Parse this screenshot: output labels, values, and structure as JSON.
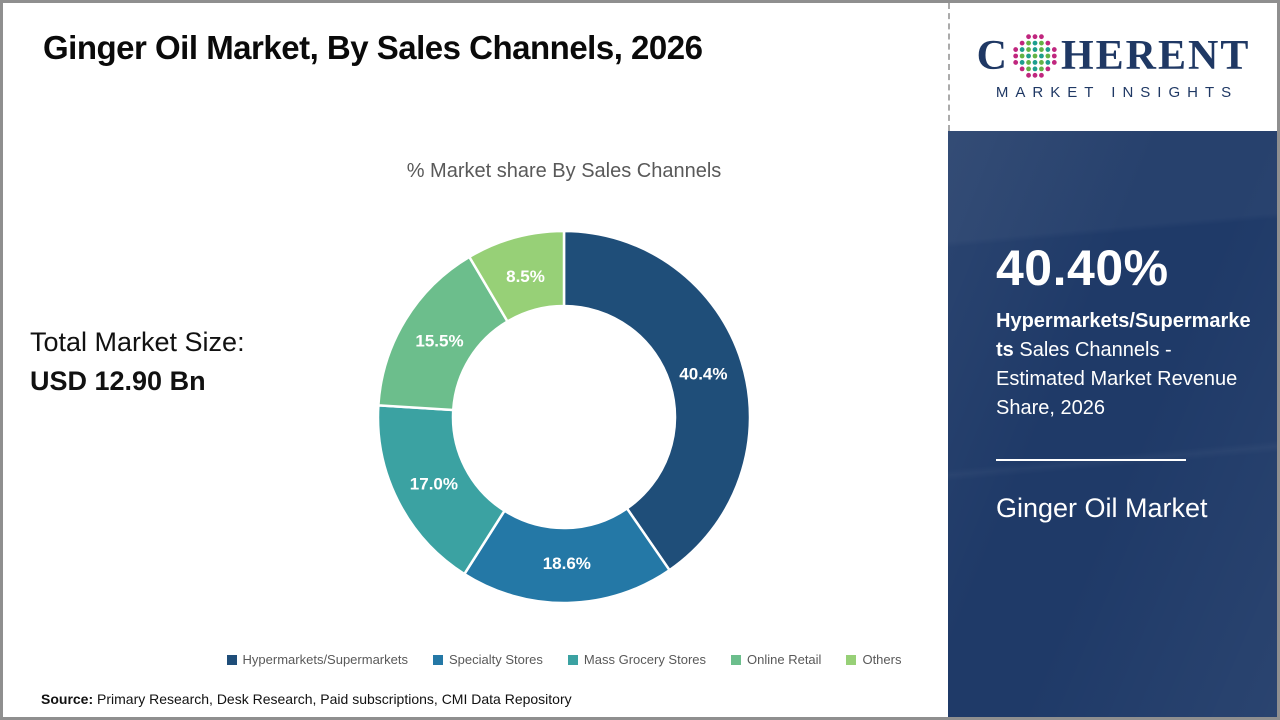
{
  "header": {
    "title": "Ginger Oil Market, By Sales Channels, 2026"
  },
  "logo": {
    "prefix": "C",
    "suffix": "HERENT",
    "subtitle": "MARKET INSIGHTS",
    "brand_color": "#1F3864",
    "globe_colors": {
      "edge": "#C0267E",
      "a": "#1E9E8E",
      "b": "#63B345"
    }
  },
  "total_market": {
    "label": "Total Market Size:",
    "value": "USD 12.90 Bn"
  },
  "chart_data": {
    "type": "pie",
    "variant": "donut",
    "title": "% Market share By Sales Channels",
    "start_angle_deg": 0,
    "direction": "clockwise",
    "legend_position": "bottom",
    "label_color": "#FFFFFF",
    "series": [
      {
        "label": "Hypermarkets/Supermarkets",
        "value": 40.4,
        "display": "40.4%",
        "color": "#1F4E79"
      },
      {
        "label": "Specialty Stores",
        "value": 18.6,
        "display": "18.6%",
        "color": "#2478A6"
      },
      {
        "label": "Mass Grocery Stores",
        "value": 17.0,
        "display": "17.0%",
        "color": "#3BA2A2"
      },
      {
        "label": "Online Retail",
        "value": 15.5,
        "display": "15.5%",
        "color": "#6CBE8C"
      },
      {
        "label": "Others",
        "value": 8.5,
        "display": "8.5%",
        "color": "#97D077"
      }
    ]
  },
  "sidebar": {
    "background_color": "#1F3A68",
    "stat_value": "40.40%",
    "stat_bold": "Hypermarkets/Supermarkets",
    "stat_rest": " Sales Channels - Estimated Market Revenue Share, 2026",
    "market_name": "Ginger Oil Market"
  },
  "source": {
    "label": "Source:",
    "text": " Primary Research, Desk Research, Paid subscriptions, CMI Data Repository"
  }
}
